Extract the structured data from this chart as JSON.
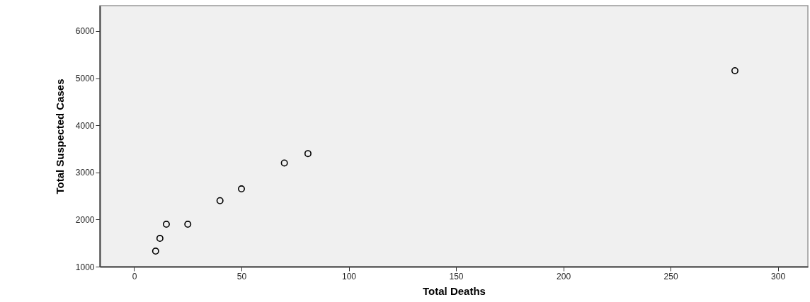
{
  "chart_data": {
    "type": "scatter",
    "xlabel": "Total Deaths",
    "ylabel": "Total Suspected Cases",
    "x": [
      10,
      12,
      15,
      25,
      40,
      50,
      70,
      81,
      280
    ],
    "series": [
      {
        "color": "#000000",
        "values": [
          1330,
          1600,
          1900,
          1900,
          2400,
          2650,
          3200,
          3400,
          5160
        ]
      }
    ],
    "xlim": [
      -16,
      314
    ],
    "ylim": [
      1000,
      6540
    ],
    "xticks": [
      0,
      50,
      100,
      150,
      200,
      250,
      300
    ],
    "yticks": [
      1000,
      2000,
      3000,
      4000,
      5000,
      6000
    ],
    "grid": false,
    "marker": "circle"
  }
}
